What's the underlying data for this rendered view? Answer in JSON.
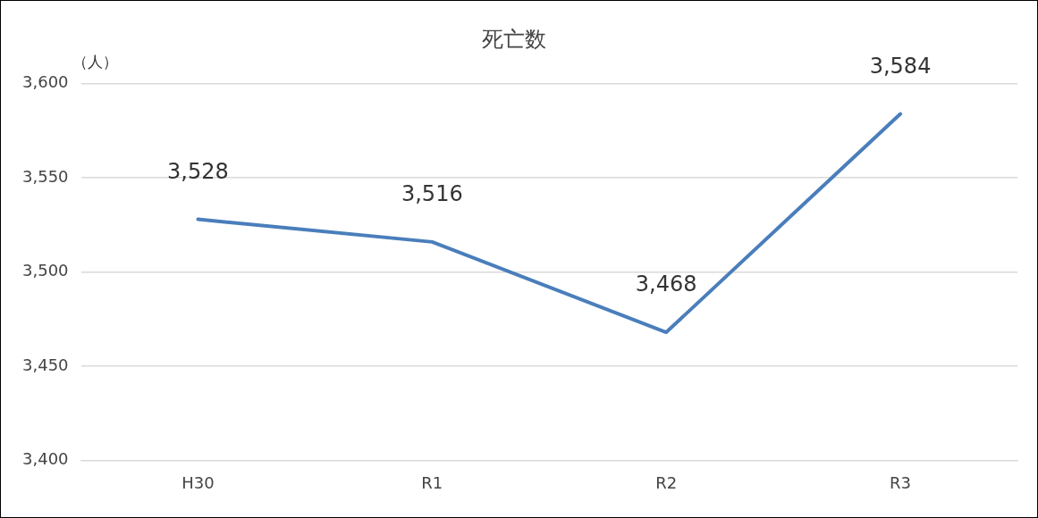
{
  "chart_data": {
    "type": "line",
    "title": "死亡数",
    "ylabel": "（人）",
    "categories": [
      "H30",
      "R1",
      "R2",
      "R3"
    ],
    "series": [
      {
        "color": "#4a7ebb",
        "values": [
          3528,
          3516,
          3468,
          3584
        ],
        "value_labels": [
          "3,528",
          "3,516",
          "3,468",
          "3,584"
        ]
      }
    ],
    "ylim": [
      3400,
      3600
    ],
    "yticks": [
      {
        "value": 3400,
        "label": "3,400"
      },
      {
        "value": 3450,
        "label": "3,450"
      },
      {
        "value": 3500,
        "label": "3,500"
      },
      {
        "value": 3550,
        "label": "3,550"
      },
      {
        "value": 3600,
        "label": "3,600"
      }
    ],
    "grid": "y",
    "legend": false,
    "marker": "none",
    "line_style": "solid"
  }
}
